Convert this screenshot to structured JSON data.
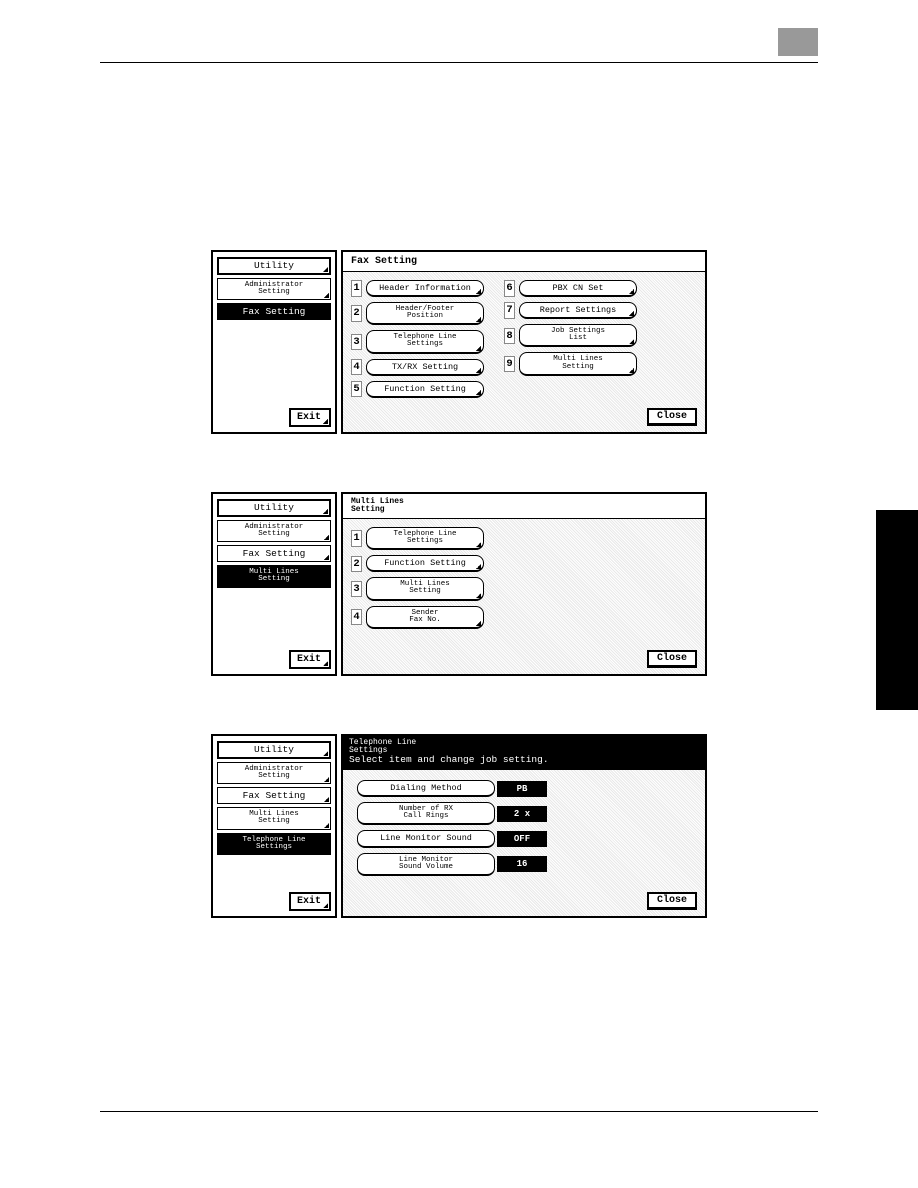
{
  "screen1": {
    "sidebar": {
      "utility": "Utility",
      "admin": "Administrator\nSetting",
      "fax": "Fax Setting",
      "exit": "Exit"
    },
    "title": "Fax Setting",
    "left_items": [
      {
        "n": "1",
        "label": "Header Information"
      },
      {
        "n": "2",
        "label": "Header/Footer\nPosition",
        "two": true
      },
      {
        "n": "3",
        "label": "Telephone Line\nSettings",
        "two": true
      },
      {
        "n": "4",
        "label": "TX/RX Setting"
      },
      {
        "n": "5",
        "label": "Function Setting"
      }
    ],
    "right_items": [
      {
        "n": "6",
        "label": "PBX CN Set"
      },
      {
        "n": "7",
        "label": "Report Settings"
      },
      {
        "n": "8",
        "label": "Job Settings\nList",
        "two": true
      },
      {
        "n": "9",
        "label": "Multi Lines\nSetting",
        "two": true
      }
    ],
    "close": "Close"
  },
  "screen2": {
    "sidebar": {
      "utility": "Utility",
      "admin": "Administrator\nSetting",
      "fax": "Fax Setting",
      "multi": "Multi Lines\nSetting",
      "exit": "Exit"
    },
    "title": "Multi Lines\nSetting",
    "items": [
      {
        "n": "1",
        "label": "Telephone Line\nSettings",
        "two": true
      },
      {
        "n": "2",
        "label": "Function Setting"
      },
      {
        "n": "3",
        "label": "Multi Lines\nSetting",
        "two": true
      },
      {
        "n": "4",
        "label": "Sender\nFax No.",
        "two": true
      }
    ],
    "close": "Close"
  },
  "screen3": {
    "sidebar": {
      "utility": "Utility",
      "admin": "Administrator\nSetting",
      "fax": "Fax Setting",
      "multi": "Multi Lines\nSetting",
      "tel": "Telephone Line\nSettings",
      "exit": "Exit"
    },
    "title1": "Telephone Line\nSettings",
    "title2": "Select item and change job setting.",
    "rows": [
      {
        "label": "Dialing Method",
        "val": "PB"
      },
      {
        "label": "Number of RX\nCall Rings",
        "val": "2 x",
        "two": true
      },
      {
        "label": "Line Monitor Sound",
        "val": "OFF"
      },
      {
        "label": "Line Monitor\nSound Volume",
        "val": "16",
        "two": true
      }
    ],
    "close": "Close"
  }
}
